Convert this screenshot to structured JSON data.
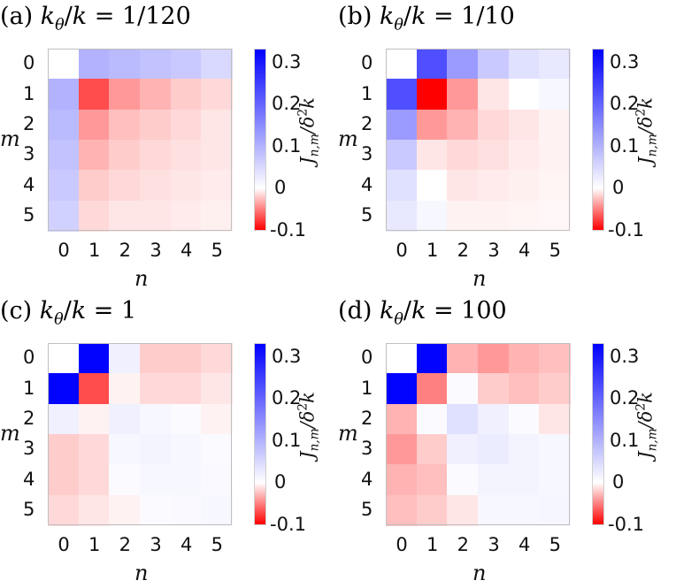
{
  "chart_data": [
    {
      "type": "heatmap",
      "title": "(a) kθ/k = 1/120",
      "title_prefix": "(a) ",
      "ratio": "1/120",
      "xlabel": "n",
      "ylabel": "m",
      "x_ticks": [
        "0",
        "1",
        "2",
        "3",
        "4",
        "5"
      ],
      "y_ticks": [
        "0",
        "1",
        "2",
        "3",
        "4",
        "5"
      ],
      "colorbar": {
        "label": "J_{n,m}/δ²k",
        "ticks": [
          "0.3",
          "0.2",
          "0.1",
          "0",
          "-0.1"
        ],
        "range": [
          -0.1,
          0.333
        ]
      },
      "values": [
        [
          0.0,
          0.1,
          0.09,
          0.08,
          0.07,
          0.05
        ],
        [
          0.1,
          -0.07,
          -0.04,
          -0.03,
          -0.02,
          -0.015
        ],
        [
          0.09,
          -0.04,
          -0.025,
          -0.02,
          -0.015,
          -0.01
        ],
        [
          0.08,
          -0.03,
          -0.02,
          -0.015,
          -0.012,
          -0.01
        ],
        [
          0.07,
          -0.02,
          -0.015,
          -0.012,
          -0.01,
          -0.008
        ],
        [
          0.06,
          -0.015,
          -0.01,
          -0.01,
          -0.008,
          -0.006
        ]
      ]
    },
    {
      "type": "heatmap",
      "title": "(b) kθ/k = 1/10",
      "title_prefix": "(b) ",
      "ratio": "1/10",
      "xlabel": "n",
      "ylabel": "m",
      "x_ticks": [
        "0",
        "1",
        "2",
        "3",
        "4",
        "5"
      ],
      "y_ticks": [
        "0",
        "1",
        "2",
        "3",
        "4",
        "5"
      ],
      "colorbar": {
        "label": "J_{n,m}/δ²k",
        "ticks": [
          "0.3",
          "0.2",
          "0.1",
          "0",
          "-0.1"
        ],
        "range": [
          -0.1,
          0.333
        ]
      },
      "values": [
        [
          0.0,
          0.23,
          0.13,
          0.07,
          0.04,
          0.03
        ],
        [
          0.23,
          -0.1,
          -0.04,
          -0.01,
          0.0,
          0.01
        ],
        [
          0.13,
          -0.04,
          -0.03,
          -0.015,
          -0.01,
          -0.005
        ],
        [
          0.07,
          -0.01,
          -0.015,
          -0.012,
          -0.008,
          -0.005
        ],
        [
          0.04,
          0.0,
          -0.01,
          -0.008,
          -0.006,
          -0.004
        ],
        [
          0.03,
          0.01,
          -0.005,
          -0.005,
          -0.004,
          -0.003
        ]
      ]
    },
    {
      "type": "heatmap",
      "title": "(c) kθ/k = 1",
      "title_prefix": "(c) ",
      "ratio": "1",
      "xlabel": "n",
      "ylabel": "m",
      "x_ticks": [
        "0",
        "1",
        "2",
        "3",
        "4",
        "5"
      ],
      "y_ticks": [
        "0",
        "1",
        "2",
        "3",
        "4",
        "5"
      ],
      "colorbar": {
        "label": "J_{n,m}/δ²k",
        "ticks": [
          "0.3",
          "0.2",
          "0.1",
          "0",
          "-0.1"
        ],
        "range": [
          -0.1,
          0.333
        ]
      },
      "values": [
        [
          0.0,
          0.33,
          0.02,
          -0.02,
          -0.02,
          -0.015
        ],
        [
          0.33,
          -0.07,
          -0.005,
          -0.015,
          -0.015,
          -0.01
        ],
        [
          0.02,
          -0.005,
          0.02,
          0.01,
          0.005,
          -0.005
        ],
        [
          -0.02,
          -0.015,
          0.01,
          0.015,
          0.01,
          0.005
        ],
        [
          -0.02,
          -0.015,
          0.005,
          0.01,
          0.01,
          0.008
        ],
        [
          -0.015,
          -0.01,
          -0.005,
          0.005,
          0.008,
          0.01
        ]
      ]
    },
    {
      "type": "heatmap",
      "title": "(d) kθ/k = 100",
      "title_prefix": "(d) ",
      "ratio": "100",
      "xlabel": "n",
      "ylabel": "m",
      "x_ticks": [
        "0",
        "1",
        "2",
        "3",
        "4",
        "5"
      ],
      "y_ticks": [
        "0",
        "1",
        "2",
        "3",
        "4",
        "5"
      ],
      "colorbar": {
        "label": "J_{n,m}/δ²k",
        "ticks": [
          "0.3",
          "0.2",
          "0.1",
          "0",
          "-0.1"
        ],
        "range": [
          -0.1,
          0.333
        ]
      },
      "values": [
        [
          0.0,
          0.33,
          -0.03,
          -0.04,
          -0.03,
          -0.025
        ],
        [
          0.33,
          -0.05,
          0.005,
          -0.02,
          -0.025,
          -0.02
        ],
        [
          -0.03,
          0.005,
          0.04,
          0.02,
          0.005,
          -0.01
        ],
        [
          -0.04,
          -0.02,
          0.02,
          0.025,
          0.015,
          0.01
        ],
        [
          -0.03,
          -0.025,
          0.005,
          0.015,
          0.015,
          0.01
        ],
        [
          -0.025,
          -0.02,
          -0.01,
          0.01,
          0.01,
          0.012
        ]
      ]
    }
  ]
}
